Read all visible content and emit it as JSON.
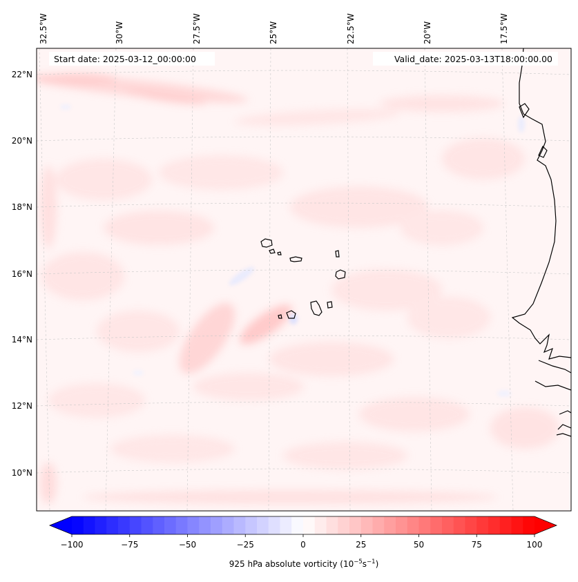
{
  "header": {
    "start_date": "Start date: 2025-03-12_00:00:00",
    "valid_date": "Valid_date: 2025-03-13T18:00:00.00"
  },
  "longitude_labels": [
    "32.5°W",
    "30°W",
    "27.5°W",
    "25°W",
    "22.5°W",
    "20°W",
    "17.5°W"
  ],
  "latitude_labels": [
    "22°N",
    "20°N",
    "18°N",
    "16°N",
    "14°N",
    "12°N",
    "10°N"
  ],
  "colorbar": {
    "min": -100,
    "max": 100,
    "ticks": [
      "−100",
      "−75",
      "−50",
      "−25",
      "0",
      "25",
      "50",
      "75",
      "100"
    ],
    "label_prefix": "925 hPa absolute vorticity (10",
    "label_exp1": "−5",
    "label_mid": "s",
    "label_exp2": "−1",
    "label_suffix": ")",
    "low_color": "#0000ff",
    "mid_color": "#ffffff",
    "high_color": "#ff0000"
  },
  "map": {
    "ocean_background": "#fff5f5",
    "coastline_color": "#000000",
    "gridline_color": "#c8c8c8"
  }
}
